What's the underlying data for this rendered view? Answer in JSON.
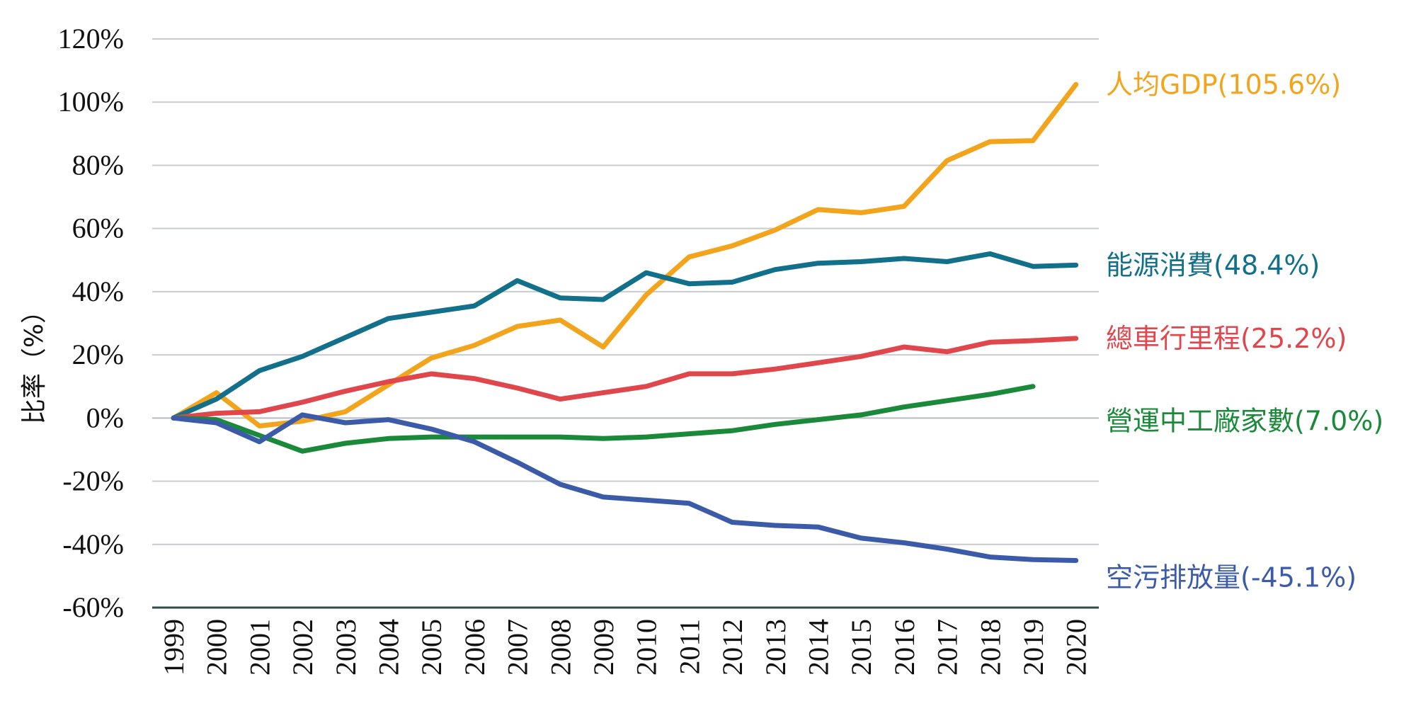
{
  "chart_data": {
    "type": "line",
    "title": "",
    "xlabel": "",
    "ylabel": "比率（%）",
    "ylim": [
      -60,
      120
    ],
    "yticks": [
      120,
      100,
      80,
      60,
      40,
      20,
      0,
      -20,
      -40,
      -60
    ],
    "ytick_labels": [
      "120%",
      "100%",
      "80%",
      "60%",
      "40%",
      "20%",
      "0%",
      "-20%",
      "-40%",
      "-60%"
    ],
    "categories": [
      "1999",
      "2000",
      "2001",
      "2002",
      "2003",
      "2004",
      "2005",
      "2006",
      "2007",
      "2008",
      "2009",
      "2010",
      "2011",
      "2012",
      "2013",
      "2014",
      "2015",
      "2016",
      "2017",
      "2018",
      "2019",
      "2020"
    ],
    "grid": true,
    "series": [
      {
        "name": "人均GDP",
        "label": "人均GDP(105.6%)",
        "color": "#F2A51C",
        "values": [
          0,
          8,
          -2.5,
          -1,
          2,
          10.5,
          19,
          23,
          29,
          31,
          22.5,
          39,
          51,
          54.5,
          59.5,
          66,
          65,
          67,
          81.5,
          87.5,
          87.8,
          105.6
        ]
      },
      {
        "name": "能源消費",
        "label": "能源消費(48.4%)",
        "color": "#12708A",
        "values": [
          0,
          6,
          15,
          19.5,
          25.5,
          31.5,
          33.5,
          35.5,
          43.5,
          38,
          37.5,
          46,
          42.5,
          43,
          47,
          49,
          49.5,
          50.5,
          49.5,
          52,
          48,
          48.4
        ]
      },
      {
        "name": "總車行里程",
        "label": "總車行里程(25.2%)",
        "color": "#E0474C",
        "values": [
          0,
          1.5,
          2,
          5,
          8.5,
          11.5,
          14,
          12.5,
          9.5,
          6,
          8,
          10,
          14,
          14,
          15.5,
          17.5,
          19.5,
          22.5,
          21,
          24,
          24.5,
          25.2
        ]
      },
      {
        "name": "營運中工廠家數",
        "label": "營運中工廠家數(7.0%)",
        "color": "#1A8A3A",
        "values": [
          0,
          -0.5,
          -5.5,
          -10.5,
          -8,
          -6.5,
          -6,
          -6,
          -6,
          -6,
          -6.5,
          -6,
          -5,
          -4,
          -2,
          -0.5,
          1,
          3.5,
          5.5,
          7.5,
          10,
          null
        ]
      },
      {
        "name": "空污排放量",
        "label": "空污排放量(-45.1%)",
        "color": "#3B5BA8",
        "values": [
          0,
          -1.5,
          -7.5,
          1,
          -1.5,
          -0.5,
          -3.5,
          -7.5,
          -14,
          -21,
          -25,
          -26,
          -27,
          -33,
          -34,
          -34.5,
          -38,
          -39.5,
          -41.5,
          -44,
          -44.8,
          -45.1
        ]
      }
    ]
  }
}
